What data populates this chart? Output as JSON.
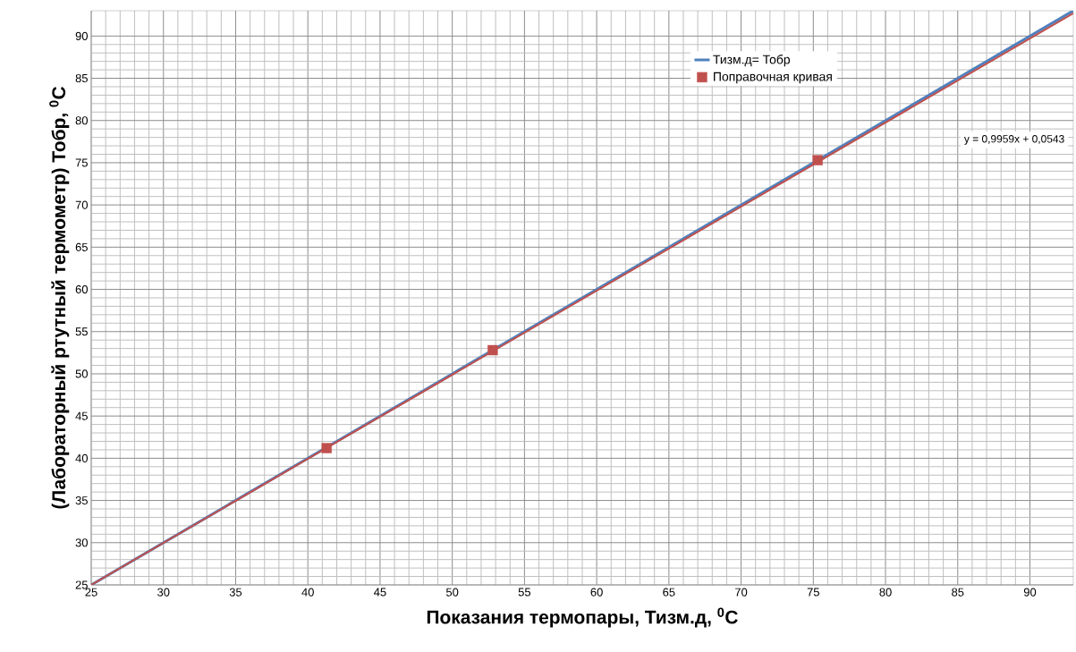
{
  "chart_data": {
    "type": "line",
    "xlabel": "Показания термопары, Тизм.д, $^{0}$C",
    "ylabel": "(Лабораторный ртутный термометр) Тобр, $^{0}$C",
    "xlim": [
      25,
      93
    ],
    "ylim": [
      25,
      93
    ],
    "xticks": [
      25,
      30,
      35,
      40,
      45,
      50,
      55,
      60,
      65,
      70,
      75,
      80,
      85,
      90
    ],
    "yticks": [
      25,
      30,
      35,
      40,
      45,
      50,
      55,
      60,
      65,
      70,
      75,
      80,
      85,
      90
    ],
    "grid": true,
    "legend": "top right",
    "series": [
      {
        "name": "Тизм.д= Тобр",
        "color": "#4f81bd",
        "x": [
          25,
          93
        ],
        "values": [
          25,
          93
        ],
        "marker": "none"
      },
      {
        "name": "Поправочная кривая",
        "type": "scatter",
        "color": "#c0504d",
        "x": [
          41.3,
          52.8,
          75.3
        ],
        "values": [
          41.2,
          52.8,
          75.3
        ],
        "marker": "square"
      },
      {
        "color": "#c0504d",
        "x": [
          25,
          93
        ],
        "values": [
          25.0,
          92.7
        ],
        "marker": "none"
      }
    ],
    "annotations": [
      "y = 0,9959x + 0,0543"
    ]
  }
}
